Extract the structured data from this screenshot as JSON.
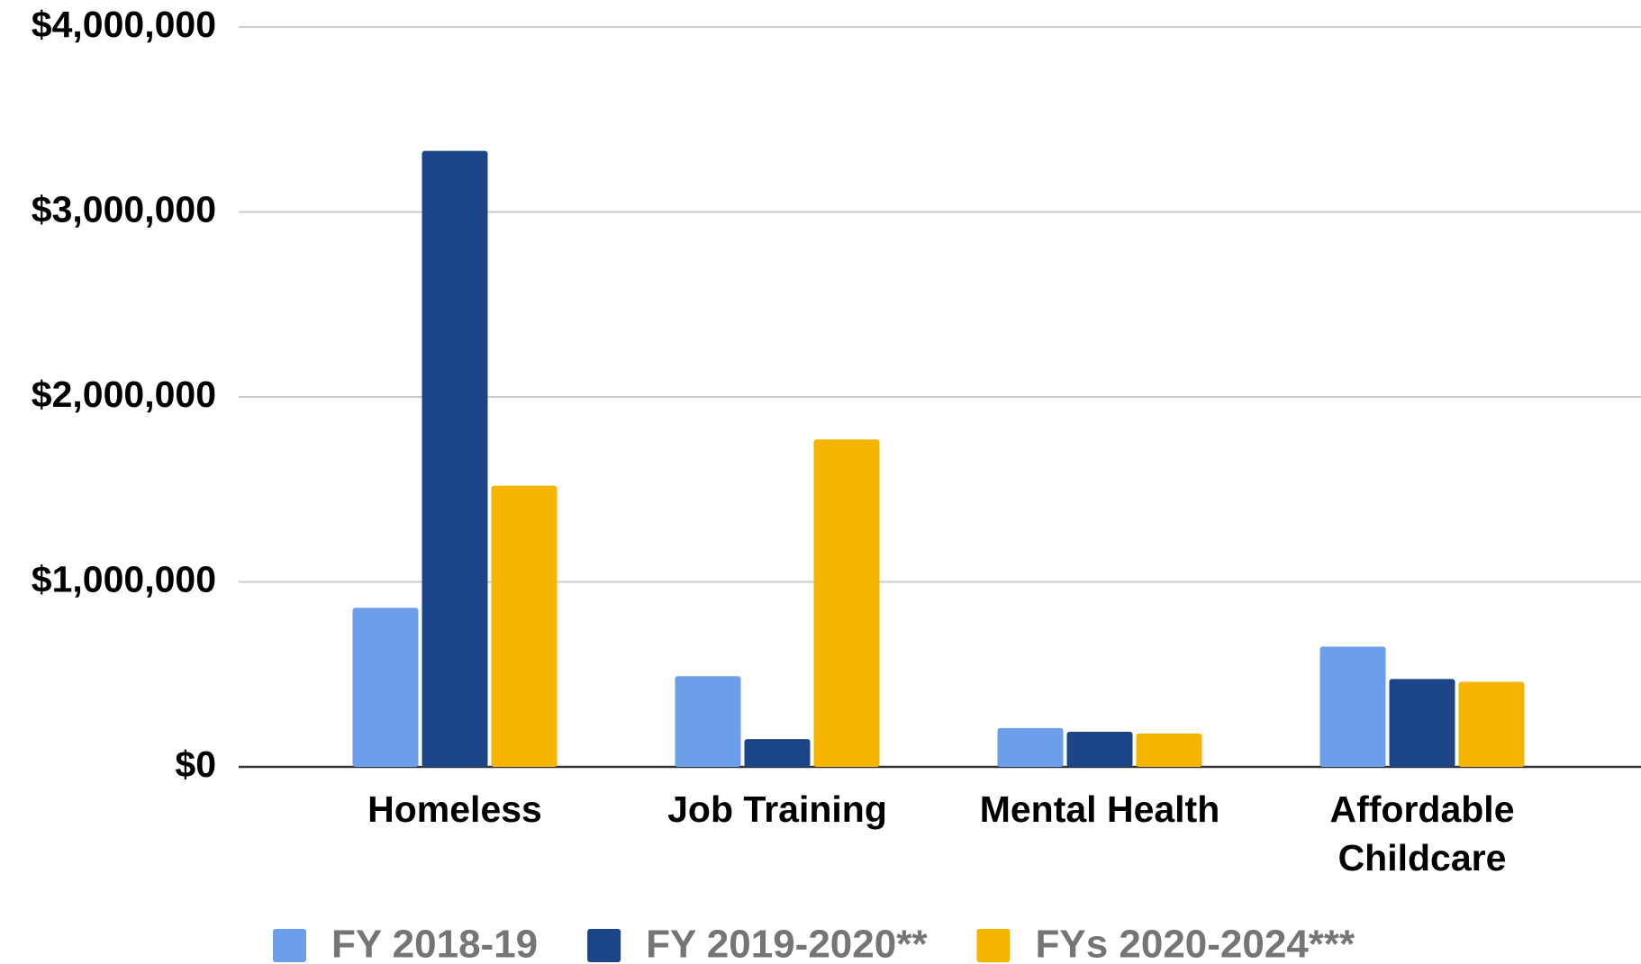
{
  "chart_data": {
    "type": "bar",
    "categories": [
      "Homeless",
      "Job Training",
      "Mental Health",
      "Affordable Childcare"
    ],
    "series": [
      {
        "name": "FY 2018-19",
        "color": "#6d9eeb",
        "values": [
          860000,
          490000,
          210000,
          650000
        ]
      },
      {
        "name": "FY 2019-2020**",
        "color": "#1c4587",
        "values": [
          3330000,
          150000,
          190000,
          475000
        ]
      },
      {
        "name": "FYs 2020-2024***",
        "color": "#f4b400",
        "values": [
          1520000,
          1770000,
          180000,
          460000
        ]
      }
    ],
    "ylim": [
      0,
      4000000
    ],
    "yticks": [
      {
        "value": 0,
        "label": "$0"
      },
      {
        "value": 1000000,
        "label": "$1,000,000"
      },
      {
        "value": 2000000,
        "label": "$2,000,000"
      },
      {
        "value": 3000000,
        "label": "$3,000,000"
      },
      {
        "value": 4000000,
        "label": "$4,000,000"
      }
    ],
    "grid": true,
    "legend": "bottom"
  }
}
